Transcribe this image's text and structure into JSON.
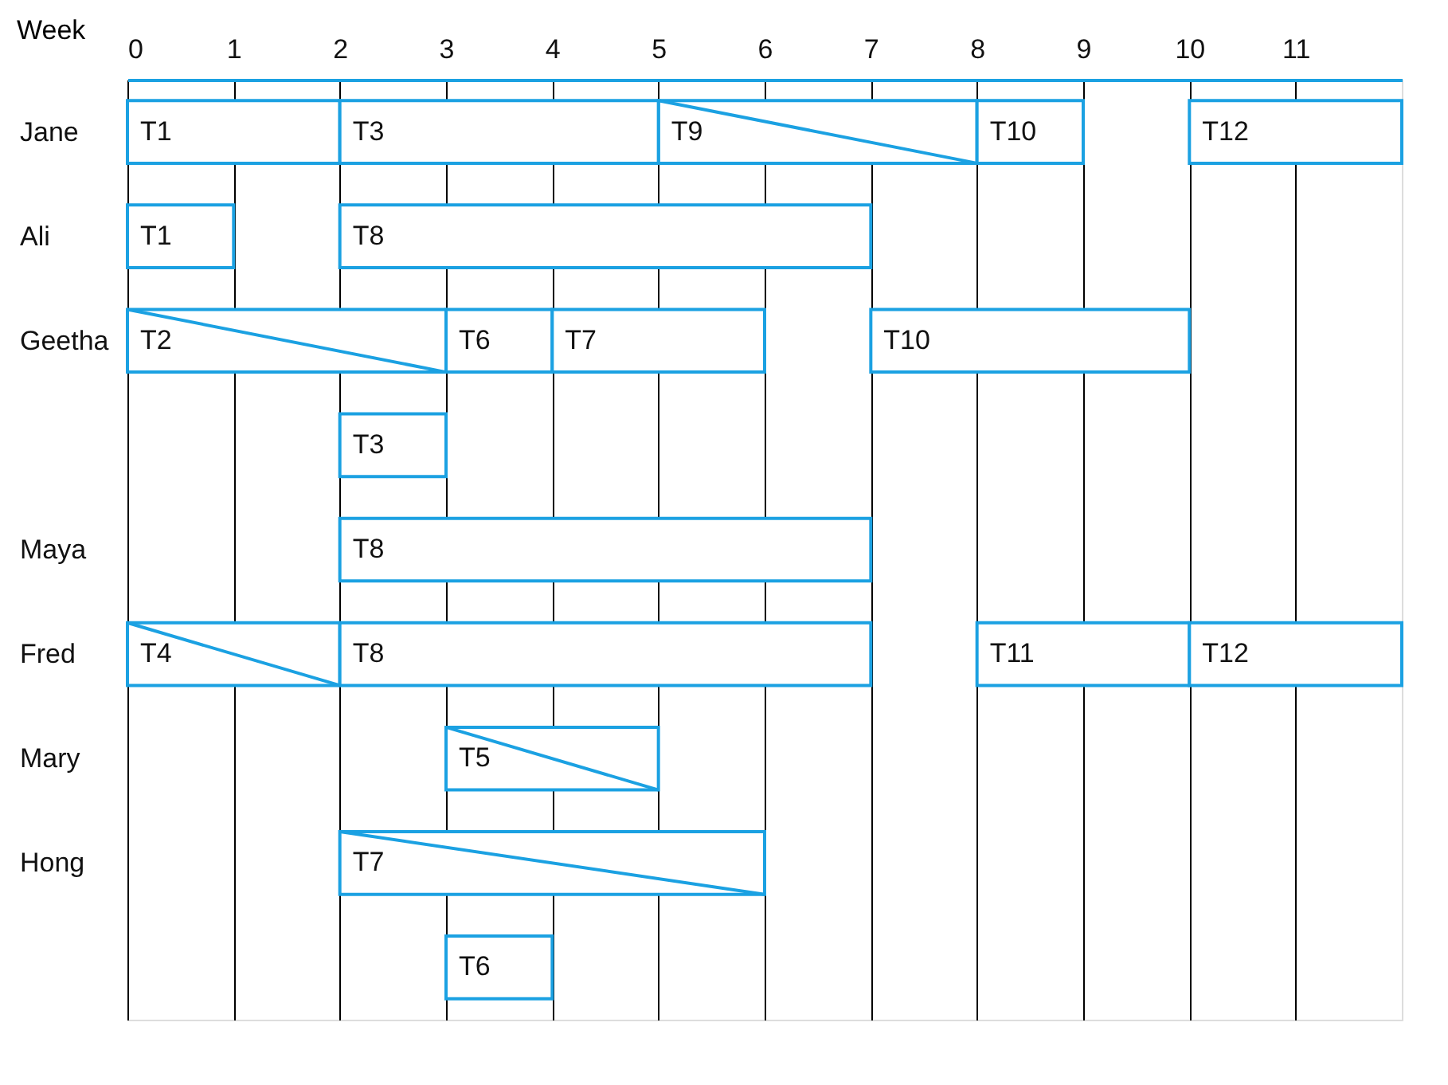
{
  "chart_data": {
    "type": "bar",
    "orientation": "horizontal",
    "xlabel": "Week",
    "categories": [
      "Jane",
      "Ali",
      "Geetha",
      null,
      "Maya",
      "Fred",
      "Mary",
      "Hong",
      null
    ],
    "xlim": [
      0,
      12
    ],
    "xticks": [
      0,
      1,
      2,
      3,
      4,
      5,
      6,
      7,
      8,
      9,
      10,
      11
    ],
    "grid": "x",
    "series": [
      {
        "color": "#1ba1e2",
        "marker": "cross",
        "base": [
          5,
          null,
          0,
          null,
          null,
          0,
          3,
          2,
          null
        ],
        "values": [
          3,
          null,
          3,
          null,
          null,
          2,
          2,
          4,
          null
        ],
        "value_labels": [
          "T9",
          null,
          "T2",
          null,
          null,
          "T4",
          "T5",
          "T7",
          null
        ]
      },
      {
        "color": "#1ba1e2",
        "marker": "none",
        "base": [
          0,
          0,
          3,
          2,
          2,
          2,
          null,
          null,
          3
        ],
        "values": [
          2,
          1,
          1,
          1,
          5,
          5,
          null,
          null,
          1
        ],
        "value_labels": [
          "T1",
          "T1",
          "T6",
          "T3",
          "T8",
          "T8",
          null,
          null,
          "T6"
        ]
      },
      {
        "color": "#1ba1e2",
        "marker": "none",
        "base": [
          2,
          2,
          4,
          null,
          null,
          8,
          null,
          null,
          null
        ],
        "values": [
          3,
          5,
          2,
          null,
          null,
          2,
          null,
          null,
          null
        ],
        "value_labels": [
          "T3",
          "T8",
          "T7",
          null,
          null,
          "T11",
          null,
          null,
          null
        ]
      },
      {
        "color": "#1ba1e2",
        "marker": "none",
        "base": [
          8,
          null,
          7,
          null,
          null,
          10,
          null,
          null,
          null
        ],
        "values": [
          1,
          null,
          3,
          null,
          null,
          2,
          null,
          null,
          null
        ],
        "value_labels": [
          "T10",
          null,
          "T10",
          null,
          null,
          "T12",
          null,
          null,
          null
        ]
      },
      {
        "color": "#1ba1e2",
        "marker": "none",
        "base": [
          10,
          null,
          null,
          null,
          null,
          null,
          null,
          null,
          null
        ],
        "values": [
          2,
          null,
          null,
          null,
          null,
          null,
          null,
          null,
          null
        ],
        "value_labels": [
          "T12",
          null,
          null,
          null,
          null,
          null,
          null,
          null,
          null
        ]
      }
    ]
  }
}
